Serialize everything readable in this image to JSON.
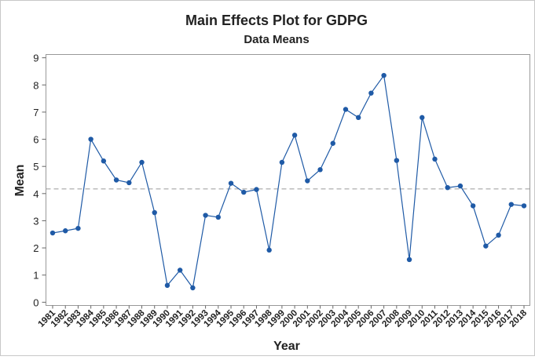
{
  "chart_data": {
    "type": "line",
    "title": "Main Effects Plot for GDPG",
    "subtitle": "Data Means",
    "x_label": "Year",
    "y_label": "Mean",
    "categories": [
      "1981",
      "1982",
      "1983",
      "1984",
      "1985",
      "1986",
      "1987",
      "1988",
      "1989",
      "1990",
      "1991",
      "1992",
      "1993",
      "1994",
      "1995",
      "1996",
      "1997",
      "1998",
      "1999",
      "2000",
      "2001",
      "2002",
      "2003",
      "2004",
      "2005",
      "2006",
      "2007",
      "2008",
      "2009",
      "2010",
      "2011",
      "2012",
      "2013",
      "2014",
      "2015",
      "2016",
      "2017",
      "2018"
    ],
    "values": [
      2.55,
      2.63,
      2.72,
      6.0,
      5.2,
      4.5,
      4.4,
      5.15,
      3.3,
      0.62,
      1.18,
      0.53,
      3.2,
      3.13,
      4.38,
      4.05,
      4.15,
      1.92,
      5.15,
      6.15,
      4.47,
      4.88,
      5.85,
      7.1,
      6.8,
      7.7,
      8.35,
      5.22,
      1.57,
      6.8,
      5.27,
      4.22,
      4.28,
      3.55,
      2.07,
      2.47,
      3.6,
      3.55
    ],
    "color": "#1f5aa6",
    "reference_line": 4.17,
    "ylim": [
      -0.12,
      9.12
    ],
    "yticks": [
      0,
      1,
      2,
      3,
      4,
      5,
      6,
      7,
      8,
      9
    ]
  }
}
